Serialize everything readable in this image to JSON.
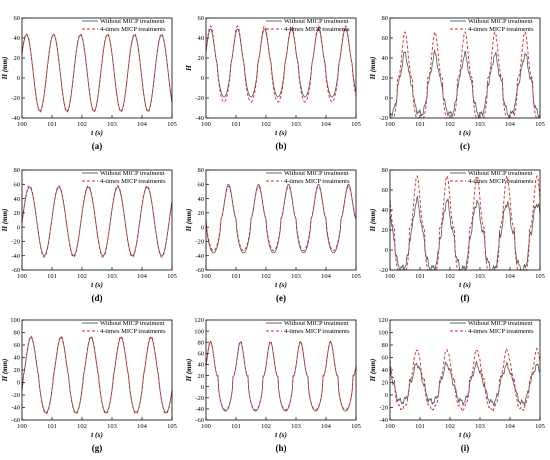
{
  "figure": {
    "panel_labels": [
      "(a)",
      "(b)",
      "(c)",
      "(d)",
      "(e)",
      "(f)",
      "(g)",
      "(h)",
      "(i)"
    ],
    "colors": {
      "without": "#555555",
      "with": "#d42a2a",
      "axis": "#000000"
    }
  },
  "chart_data": [
    {
      "type": "line",
      "panel": "(a)",
      "xlabel": "t (s)",
      "ylabel": "H (mm)",
      "xlim": [
        100,
        105
      ],
      "ylim": [
        -40,
        60
      ],
      "xticks": [
        100,
        101,
        102,
        103,
        104,
        105
      ],
      "yticks": [
        -40,
        -20,
        0,
        20,
        40,
        60
      ],
      "legend_position": "top-right",
      "series": [
        {
          "name": "Without MICP treatment",
          "style": "solid",
          "period": 0.9,
          "phase": 0.15,
          "mean": 5,
          "amplitude": 38,
          "peakedness": 1.0,
          "noise": 0
        },
        {
          "name": "4-times MICP treatments",
          "style": "dashed",
          "period": 0.9,
          "phase": 0.15,
          "mean": 5,
          "amplitude": 39,
          "peakedness": 1.0,
          "noise": 0
        }
      ]
    },
    {
      "type": "line",
      "panel": "(b)",
      "xlabel": "t (s)",
      "ylabel": "H",
      "xlim": [
        100,
        105
      ],
      "ylim": [
        -40,
        60
      ],
      "xticks": [
        100,
        101,
        102,
        103,
        104,
        105
      ],
      "yticks": [
        -40,
        -20,
        0,
        20,
        40,
        60
      ],
      "legend_position": "top-right",
      "series": [
        {
          "name": "Without MICP treatment",
          "style": "solid",
          "period": 0.9,
          "phase": 0.15,
          "mean": 15,
          "amplitude": 34,
          "peakedness": 1.6,
          "noise": 0
        },
        {
          "name": "4-times MICP treatments",
          "style": "dashed",
          "period": 0.9,
          "phase": 0.15,
          "mean": 14,
          "amplitude": 38,
          "peakedness": 1.6,
          "noise": 0
        }
      ]
    },
    {
      "type": "line",
      "panel": "(c)",
      "xlabel": "t (s)",
      "ylabel": "H (mm)",
      "xlim": [
        100,
        105
      ],
      "ylim": [
        -20,
        80
      ],
      "xticks": [
        100,
        101,
        102,
        103,
        104,
        105
      ],
      "yticks": [
        -20,
        0,
        20,
        40,
        60,
        80
      ],
      "legend_position": "top-right",
      "series": [
        {
          "name": "Without MICP treatment",
          "style": "solid",
          "period": 1.0,
          "phase": 0.5,
          "mean": 14,
          "amplitude": 30,
          "peakedness": 2.4,
          "noise": 5
        },
        {
          "name": "4-times MICP treatments",
          "style": "dashed",
          "period": 1.0,
          "phase": 0.5,
          "mean": 20,
          "amplitude": 46,
          "peakedness": 2.8,
          "noise": 0
        }
      ]
    },
    {
      "type": "line",
      "panel": "(d)",
      "xlabel": "t (s)",
      "ylabel": "H (mm)",
      "xlim": [
        100,
        105
      ],
      "ylim": [
        -60,
        80
      ],
      "xticks": [
        100,
        101,
        102,
        103,
        104,
        105
      ],
      "yticks": [
        -60,
        -40,
        -20,
        0,
        20,
        40,
        60,
        80
      ],
      "legend_position": "top-right",
      "series": [
        {
          "name": "Without MICP treatment",
          "style": "solid",
          "period": 0.98,
          "phase": 0.25,
          "mean": 8,
          "amplitude": 48,
          "peakedness": 1.0,
          "noise": 0
        },
        {
          "name": "4-times MICP treatments",
          "style": "dashed",
          "period": 0.98,
          "phase": 0.25,
          "mean": 8,
          "amplitude": 50,
          "peakedness": 1.0,
          "noise": 0
        }
      ]
    },
    {
      "type": "line",
      "panel": "(e)",
      "xlabel": "t (s)",
      "ylabel": "H (mm)",
      "xlim": [
        100,
        105
      ],
      "ylim": [
        -60,
        80
      ],
      "xticks": [
        100,
        101,
        102,
        103,
        104,
        105
      ],
      "yticks": [
        -60,
        -40,
        -20,
        0,
        20,
        40,
        60,
        80
      ],
      "legend_position": "top-right",
      "series": [
        {
          "name": "Without MICP treatment",
          "style": "solid",
          "period": 1.0,
          "phase": 0.75,
          "mean": 12,
          "amplitude": 48,
          "peakedness": 1.8,
          "noise": 0
        },
        {
          "name": "4-times MICP treatments",
          "style": "dashed",
          "period": 1.0,
          "phase": 0.75,
          "mean": 12,
          "amplitude": 45,
          "peakedness": 1.6,
          "noise": 0
        }
      ]
    },
    {
      "type": "line",
      "panel": "(f)",
      "xlabel": "t (s)",
      "ylabel": "H (mm)",
      "xlim": [
        100,
        105
      ],
      "ylim": [
        -20,
        80
      ],
      "xticks": [
        100,
        101,
        102,
        103,
        104,
        105
      ],
      "yticks": [
        -20,
        0,
        20,
        40,
        60,
        80
      ],
      "legend_position": "top-right",
      "series": [
        {
          "name": "Without MICP treatment",
          "style": "solid",
          "period": 1.0,
          "phase": 0.9,
          "mean": 14,
          "amplitude": 34,
          "peakedness": 2.2,
          "noise": 6
        },
        {
          "name": "4-times MICP treatments",
          "style": "dashed",
          "period": 1.0,
          "phase": 0.9,
          "mean": 22,
          "amplitude": 52,
          "peakedness": 2.8,
          "noise": 0
        }
      ]
    },
    {
      "type": "line",
      "panel": "(g)",
      "xlabel": "t (s)",
      "ylabel": "H (mm)",
      "xlim": [
        100,
        105
      ],
      "ylim": [
        -60,
        100
      ],
      "xticks": [
        100,
        101,
        102,
        103,
        104,
        105
      ],
      "yticks": [
        -60,
        -40,
        -20,
        0,
        20,
        40,
        60,
        80,
        100
      ],
      "legend_position": "top-right",
      "series": [
        {
          "name": "Without MICP treatment",
          "style": "solid",
          "period": 1.0,
          "phase": 0.3,
          "mean": 12,
          "amplitude": 60,
          "peakedness": 1.3,
          "noise": 0
        },
        {
          "name": "4-times MICP treatments",
          "style": "dashed",
          "period": 1.0,
          "phase": 0.3,
          "mean": 12,
          "amplitude": 62,
          "peakedness": 1.3,
          "noise": 0
        }
      ]
    },
    {
      "type": "line",
      "panel": "(h)",
      "xlabel": "t (s)",
      "ylabel": "H (mm)",
      "xlim": [
        100,
        105
      ],
      "ylim": [
        -60,
        120
      ],
      "xticks": [
        100,
        101,
        102,
        103,
        104,
        105
      ],
      "yticks": [
        -60,
        -40,
        -20,
        0,
        20,
        40,
        60,
        80,
        100,
        120
      ],
      "legend_position": "top-right",
      "series": [
        {
          "name": "Without MICP treatment",
          "style": "solid",
          "period": 1.0,
          "phase": 0.15,
          "mean": 18,
          "amplitude": 62,
          "peakedness": 2.2,
          "noise": 0
        },
        {
          "name": "4-times MICP treatments",
          "style": "dashed",
          "period": 1.0,
          "phase": 0.15,
          "mean": 20,
          "amplitude": 62,
          "peakedness": 2.4,
          "noise": 0
        }
      ]
    },
    {
      "type": "line",
      "panel": "(i)",
      "xlabel": "t (s)",
      "ylabel": "H (mm)",
      "xlim": [
        100,
        105
      ],
      "ylim": [
        -40,
        120
      ],
      "xticks": [
        100,
        101,
        102,
        103,
        104,
        105
      ],
      "yticks": [
        -40,
        -20,
        0,
        20,
        40,
        60,
        80,
        100,
        120
      ],
      "legend_position": "top-right",
      "series": [
        {
          "name": "Without MICP treatment",
          "style": "solid",
          "period": 1.0,
          "phase": 0.9,
          "mean": 18,
          "amplitude": 30,
          "peakedness": 1.8,
          "noise": 7
        },
        {
          "name": "4-times MICP treatments",
          "style": "dashed",
          "period": 1.0,
          "phase": 0.9,
          "mean": 25,
          "amplitude": 48,
          "peakedness": 2.4,
          "noise": 4
        }
      ]
    }
  ]
}
